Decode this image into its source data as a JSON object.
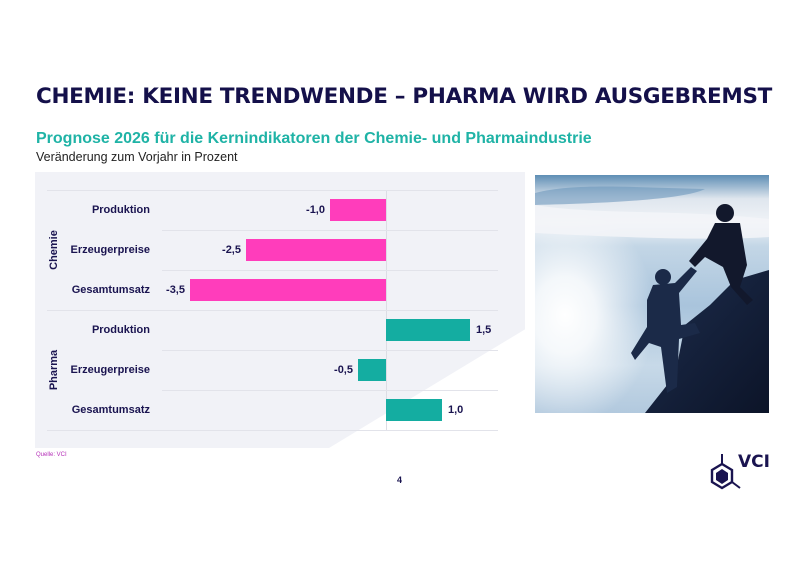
{
  "slide": {
    "title": "CHEMIE: KEINE TRENDWENDE – PHARMA WIRD AUSGEBREMST",
    "subtitle": "Prognose 2026 für die Kernindikatoren der Chemie- und Pharmaindustrie",
    "caption": "Veränderung zum Vorjahr in Prozent",
    "source": "Quelle: VCI",
    "page_number": "4",
    "logo_text": "VCI",
    "photo_alt": "Zwei Bergsteiger, einer hilft dem anderen auf den Gipfel"
  },
  "colors": {
    "chemie": "#ff3dbb",
    "pharma": "#14ada1",
    "title": "#14104a",
    "subtitle": "#1fb3a6",
    "panel": "#f1f2f7"
  },
  "chart_data": {
    "type": "bar",
    "orientation": "horizontal",
    "title": "Prognose 2026 für die Kernindikatoren der Chemie- und Pharmaindustrie",
    "subtitle": "Veränderung zum Vorjahr in Prozent",
    "xlabel": "",
    "ylabel": "",
    "xlim": [
      -3.5,
      1.5
    ],
    "grid": true,
    "legend": null,
    "groups": [
      {
        "name": "Chemie",
        "color": "#ff3dbb",
        "categories": [
          "Produktion",
          "Erzeugerpreise",
          "Gesamtumsatz"
        ],
        "values": [
          -1.0,
          -2.5,
          -3.5
        ],
        "labels": [
          "-1,0",
          "-2,5",
          "-3,5"
        ]
      },
      {
        "name": "Pharma",
        "color": "#14ada1",
        "categories": [
          "Produktion",
          "Erzeugerpreise",
          "Gesamtumsatz"
        ],
        "values": [
          1.5,
          -0.5,
          1.0
        ],
        "labels": [
          "1,5",
          "-0,5",
          "1,0"
        ]
      }
    ],
    "source": "Quelle: VCI"
  }
}
